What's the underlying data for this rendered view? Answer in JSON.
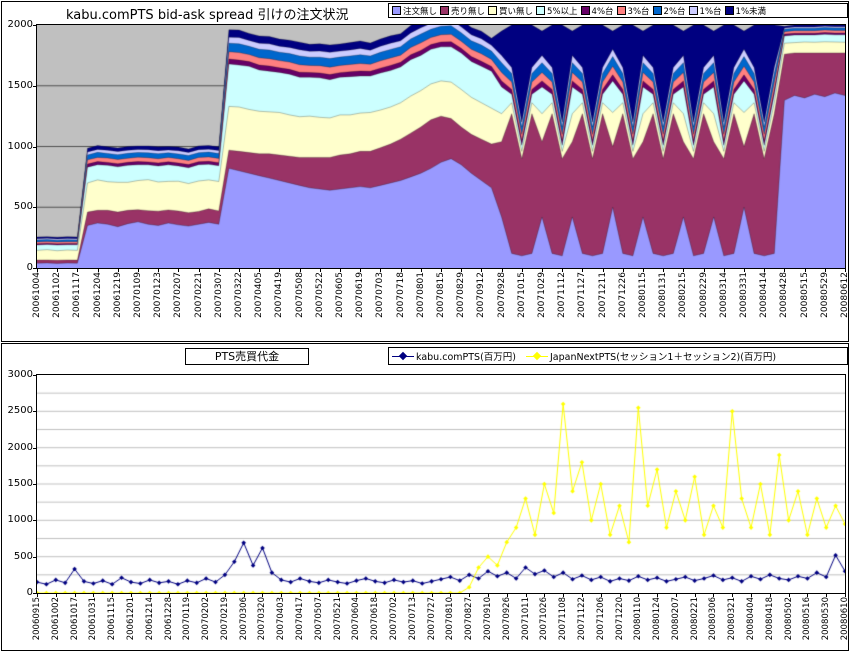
{
  "chart_data": [
    {
      "type": "area",
      "stacked": true,
      "title": "kabu.comPTS bid-ask spread 引けの注文状況",
      "plot_bg": "#C0C0C0",
      "grid_color": "#000000",
      "ylim": [
        0,
        2000
      ],
      "ygrid_step": 500,
      "ytick_labels": [
        "0",
        "500",
        "1000",
        "1500",
        "2000"
      ],
      "points_per_tick": 2,
      "legend_position": "top-right",
      "x_tick_labels": [
        "20061004",
        "20061102",
        "20061117",
        "20061204",
        "20061219",
        "20070109",
        "20070123",
        "20070207",
        "20070221",
        "20070307",
        "20070322",
        "20070405",
        "20070419",
        "20070508",
        "20070522",
        "20070605",
        "20070619",
        "20070703",
        "20070718",
        "20070801",
        "20070815",
        "20070829",
        "20070912",
        "20070928",
        "20071015",
        "20071029",
        "20071112",
        "20071127",
        "20071211",
        "20071226",
        "20080115",
        "20080131",
        "20080215",
        "20080229",
        "20080314",
        "20080331",
        "20080414",
        "20080428",
        "20080515",
        "20080529",
        "20080612"
      ],
      "series": [
        {
          "name": "注文無し",
          "color": "#9999FF",
          "values": [
            40,
            42,
            38,
            41,
            40,
            350,
            370,
            360,
            340,
            365,
            380,
            360,
            350,
            370,
            355,
            345,
            360,
            375,
            360,
            820,
            800,
            780,
            760,
            740,
            720,
            700,
            680,
            660,
            650,
            640,
            650,
            660,
            670,
            660,
            680,
            700,
            720,
            750,
            780,
            820,
            870,
            900,
            850,
            780,
            720,
            660,
            420,
            120,
            100,
            120,
            420,
            120,
            100,
            420,
            120,
            100,
            120,
            500,
            120,
            100,
            420,
            120,
            100,
            120,
            420,
            100,
            120,
            420,
            100,
            120,
            500,
            120,
            100,
            120,
            1380,
            1420,
            1400,
            1430,
            1410,
            1440,
            1420
          ]
        },
        {
          "name": "売り無し",
          "color": "#993366",
          "values": [
            25,
            24,
            26,
            25,
            25,
            110,
            105,
            115,
            120,
            110,
            100,
            112,
            118,
            108,
            114,
            110,
            106,
            112,
            110,
            150,
            160,
            170,
            180,
            200,
            210,
            220,
            230,
            250,
            260,
            270,
            280,
            280,
            290,
            300,
            310,
            320,
            340,
            360,
            380,
            400,
            380,
            330,
            310,
            320,
            340,
            360,
            620,
            1150,
            800,
            1150,
            620,
            1150,
            800,
            620,
            1150,
            800,
            1150,
            500,
            1150,
            800,
            620,
            1150,
            800,
            1150,
            620,
            800,
            1150,
            620,
            800,
            1150,
            500,
            1150,
            800,
            1150,
            380,
            350,
            370,
            340,
            360,
            330,
            350
          ]
        },
        {
          "name": "買い無し",
          "color": "#FFFFCC",
          "values": [
            80,
            85,
            78,
            82,
            80,
            240,
            250,
            235,
            245,
            230,
            240,
            255,
            240,
            235,
            245,
            240,
            250,
            238,
            242,
            360,
            365,
            355,
            350,
            345,
            350,
            340,
            335,
            340,
            330,
            325,
            330,
            320,
            315,
            320,
            310,
            305,
            300,
            305,
            300,
            295,
            290,
            300,
            310,
            305,
            300,
            295,
            230,
            90,
            60,
            90,
            230,
            90,
            60,
            230,
            90,
            60,
            90,
            280,
            90,
            60,
            230,
            90,
            60,
            90,
            230,
            60,
            90,
            230,
            60,
            90,
            280,
            90,
            60,
            90,
            90,
            85,
            90,
            88,
            92,
            90,
            88
          ]
        },
        {
          "name": "5%以上",
          "color": "#CCFFFF",
          "values": [
            45,
            43,
            47,
            44,
            46,
            130,
            125,
            135,
            128,
            140,
            130,
            122,
            132,
            136,
            126,
            130,
            134,
            128,
            130,
            350,
            345,
            355,
            340,
            335,
            330,
            335,
            325,
            320,
            325,
            315,
            310,
            315,
            305,
            300,
            305,
            300,
            295,
            300,
            290,
            285,
            280,
            290,
            300,
            295,
            300,
            305,
            220,
            70,
            50,
            70,
            220,
            70,
            50,
            220,
            70,
            50,
            70,
            260,
            70,
            50,
            220,
            70,
            50,
            70,
            220,
            50,
            70,
            220,
            50,
            70,
            260,
            70,
            50,
            70,
            60,
            62,
            58,
            60,
            61,
            59,
            62
          ]
        },
        {
          "name": "4%台",
          "color": "#660066",
          "values": [
            10,
            10,
            10,
            10,
            10,
            25,
            26,
            24,
            25,
            25,
            26,
            24,
            25,
            25,
            24,
            26,
            25,
            25,
            25,
            40,
            41,
            39,
            40,
            42,
            38,
            40,
            41,
            39,
            40,
            42,
            38,
            40,
            41,
            39,
            40,
            42,
            38,
            40,
            41,
            39,
            40,
            42,
            38,
            40,
            41,
            39,
            50,
            40,
            40,
            40,
            50,
            40,
            40,
            50,
            40,
            40,
            40,
            50,
            40,
            40,
            50,
            40,
            40,
            40,
            50,
            40,
            40,
            50,
            40,
            40,
            50,
            40,
            40,
            40,
            15,
            15,
            15,
            15,
            15,
            15,
            15
          ]
        },
        {
          "name": "3%台",
          "color": "#FF8080",
          "values": [
            15,
            14,
            16,
            15,
            15,
            35,
            34,
            36,
            35,
            33,
            36,
            35,
            34,
            36,
            35,
            34,
            35,
            36,
            35,
            60,
            62,
            58,
            60,
            61,
            59,
            60,
            62,
            58,
            60,
            61,
            59,
            60,
            62,
            58,
            60,
            61,
            59,
            60,
            62,
            58,
            60,
            61,
            59,
            60,
            62,
            58,
            70,
            60,
            50,
            60,
            70,
            60,
            50,
            70,
            60,
            50,
            60,
            70,
            60,
            50,
            70,
            60,
            50,
            60,
            70,
            50,
            60,
            70,
            50,
            60,
            70,
            60,
            50,
            60,
            20,
            21,
            19,
            20,
            20,
            21,
            20
          ]
        },
        {
          "name": "2%台",
          "color": "#0066CC",
          "values": [
            15,
            16,
            14,
            15,
            15,
            40,
            42,
            38,
            40,
            41,
            39,
            40,
            42,
            38,
            40,
            41,
            39,
            40,
            40,
            70,
            72,
            68,
            70,
            71,
            69,
            70,
            72,
            68,
            70,
            71,
            69,
            70,
            72,
            68,
            70,
            71,
            69,
            70,
            72,
            68,
            70,
            71,
            69,
            70,
            72,
            68,
            80,
            70,
            60,
            70,
            80,
            70,
            60,
            80,
            70,
            60,
            70,
            80,
            70,
            60,
            80,
            70,
            60,
            70,
            80,
            60,
            70,
            80,
            60,
            70,
            80,
            70,
            60,
            70,
            20,
            20,
            22,
            20,
            21,
            20,
            20
          ]
        },
        {
          "name": "1%台",
          "color": "#CCCCFF",
          "values": [
            10,
            10,
            10,
            10,
            10,
            25,
            24,
            26,
            25,
            25,
            24,
            26,
            25,
            24,
            26,
            25,
            25,
            24,
            25,
            50,
            52,
            48,
            50,
            51,
            49,
            50,
            52,
            48,
            50,
            51,
            49,
            50,
            52,
            48,
            50,
            51,
            49,
            50,
            52,
            48,
            50,
            51,
            49,
            50,
            52,
            48,
            60,
            50,
            40,
            50,
            60,
            50,
            40,
            60,
            50,
            40,
            50,
            60,
            50,
            40,
            60,
            50,
            40,
            50,
            60,
            40,
            50,
            60,
            40,
            50,
            60,
            50,
            40,
            50,
            10,
            11,
            10,
            10,
            11,
            10,
            10
          ]
        },
        {
          "name": "1%未満",
          "color": "#000080",
          "values": [
            15,
            14,
            15,
            16,
            15,
            30,
            32,
            28,
            30,
            31,
            29,
            30,
            32,
            28,
            30,
            29,
            31,
            30,
            30,
            60,
            62,
            58,
            60,
            61,
            59,
            60,
            62,
            58,
            60,
            61,
            59,
            60,
            62,
            58,
            60,
            61,
            59,
            60,
            62,
            58,
            60,
            61,
            59,
            60,
            62,
            58,
            200,
            350,
            800,
            350,
            200,
            350,
            800,
            200,
            350,
            800,
            350,
            150,
            350,
            800,
            200,
            350,
            800,
            350,
            200,
            800,
            350,
            200,
            800,
            350,
            150,
            350,
            800,
            350,
            15,
            16,
            15,
            17,
            15,
            16,
            15
          ]
        }
      ]
    },
    {
      "type": "line",
      "title": "PTS売買代金",
      "plot_bg": "#FFFFFF",
      "grid_color": "#808080",
      "ylim": [
        0,
        3000
      ],
      "ygrid_step": 250,
      "ytick_labels": [
        "0",
        "500",
        "1000",
        "1500",
        "2000",
        "2500",
        "3000"
      ],
      "points_per_tick": 2,
      "legend_position": "top",
      "x_tick_labels": [
        "20060915",
        "20061002",
        "20061017",
        "20061031",
        "20061115",
        "20061201",
        "20061214",
        "20061228",
        "20070119",
        "20070202",
        "20070219",
        "20070306",
        "20070320",
        "20070403",
        "20070417",
        "20070507",
        "20070521",
        "20070604",
        "20070618",
        "20070702",
        "20070713",
        "20070727",
        "20070810",
        "20070827",
        "20070910",
        "20070926",
        "20071011",
        "20071026",
        "20071108",
        "20071122",
        "20071206",
        "20071220",
        "20080110",
        "20080124",
        "20080207",
        "20080221",
        "20080306",
        "20080321",
        "20080404",
        "20080418",
        "20080502",
        "20080516",
        "20080530",
        "20080610"
      ],
      "series": [
        {
          "name": "kabu.comPTS(百万円)",
          "color": "#000080",
          "marker": "diamond",
          "values": [
            150,
            120,
            180,
            140,
            330,
            160,
            130,
            170,
            120,
            210,
            150,
            130,
            180,
            140,
            160,
            120,
            170,
            140,
            200,
            150,
            250,
            430,
            690,
            380,
            620,
            280,
            180,
            150,
            200,
            160,
            140,
            180,
            150,
            130,
            170,
            200,
            160,
            140,
            180,
            150,
            170,
            130,
            160,
            190,
            220,
            170,
            250,
            200,
            300,
            230,
            280,
            200,
            350,
            260,
            310,
            220,
            280,
            190,
            240,
            180,
            220,
            160,
            200,
            170,
            230,
            180,
            210,
            160,
            190,
            220,
            170,
            200,
            240,
            180,
            210,
            160,
            230,
            190,
            250,
            200,
            180,
            230,
            200,
            280,
            220,
            520,
            300
          ]
        },
        {
          "name": "JapanNextPTS(セッション1＋セッション2)(百万円)",
          "color": "#FFFF00",
          "marker": "diamond",
          "values": [
            0,
            0,
            0,
            0,
            0,
            0,
            0,
            0,
            0,
            0,
            0,
            0,
            0,
            0,
            0,
            0,
            0,
            0,
            0,
            0,
            0,
            0,
            0,
            0,
            0,
            0,
            0,
            0,
            0,
            0,
            0,
            0,
            0,
            0,
            0,
            0,
            0,
            0,
            0,
            0,
            0,
            0,
            0,
            0,
            0,
            0,
            80,
            350,
            500,
            380,
            700,
            900,
            1300,
            800,
            1500,
            1100,
            2600,
            1400,
            1800,
            1000,
            1500,
            800,
            1200,
            700,
            2550,
            1200,
            1700,
            900,
            1400,
            1000,
            1600,
            800,
            1200,
            900,
            2500,
            1300,
            900,
            1500,
            800,
            1900,
            1000,
            1400,
            800,
            1300,
            900,
            1200,
            950
          ]
        }
      ]
    }
  ]
}
